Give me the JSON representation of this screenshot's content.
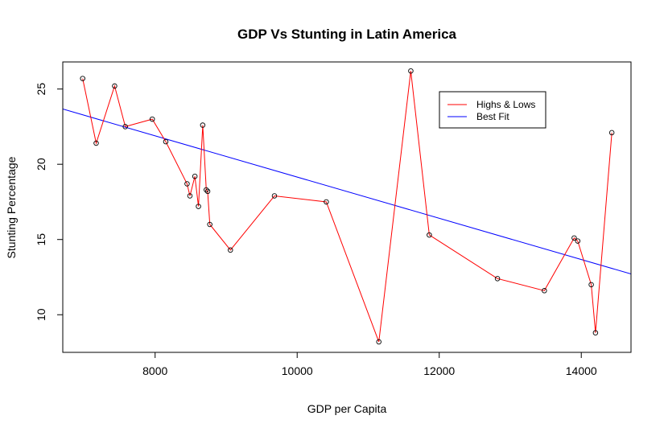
{
  "chart_data": {
    "type": "line",
    "title": "GDP Vs Stunting in Latin America",
    "xlabel": "GDP per Capita",
    "ylabel": "Stunting Percentage",
    "xlim": [
      6700,
      14700
    ],
    "ylim": [
      7.5,
      26.8
    ],
    "x_ticks": [
      8000,
      10000,
      12000,
      14000
    ],
    "y_ticks": [
      10,
      15,
      20,
      25
    ],
    "grid": false,
    "legend_position": "top-right",
    "series": [
      {
        "name": "Highs & Lows",
        "color": "#ff0000",
        "markers": "open-circle",
        "points": [
          [
            6980,
            25.7
          ],
          [
            7170,
            21.4
          ],
          [
            7430,
            25.2
          ],
          [
            7580,
            22.5
          ],
          [
            7960,
            23.0
          ],
          [
            8150,
            21.5
          ],
          [
            8450,
            18.7
          ],
          [
            8490,
            17.9
          ],
          [
            8560,
            19.2
          ],
          [
            8610,
            17.2
          ],
          [
            8670,
            22.6
          ],
          [
            8720,
            18.3
          ],
          [
            8740,
            18.2
          ],
          [
            8770,
            16.0
          ],
          [
            9060,
            14.3
          ],
          [
            9680,
            17.9
          ],
          [
            10410,
            17.5
          ],
          [
            11150,
            8.2
          ],
          [
            11600,
            26.2
          ],
          [
            11860,
            15.3
          ],
          [
            12820,
            12.4
          ],
          [
            13480,
            11.6
          ],
          [
            13900,
            15.1
          ],
          [
            13950,
            14.9
          ],
          [
            14140,
            12.0
          ],
          [
            14200,
            8.8
          ],
          [
            14430,
            22.1
          ]
        ]
      },
      {
        "name": "Best Fit",
        "color": "#0000ff",
        "line": {
          "intercept": 32.85,
          "slope": -0.00137
        }
      }
    ]
  }
}
